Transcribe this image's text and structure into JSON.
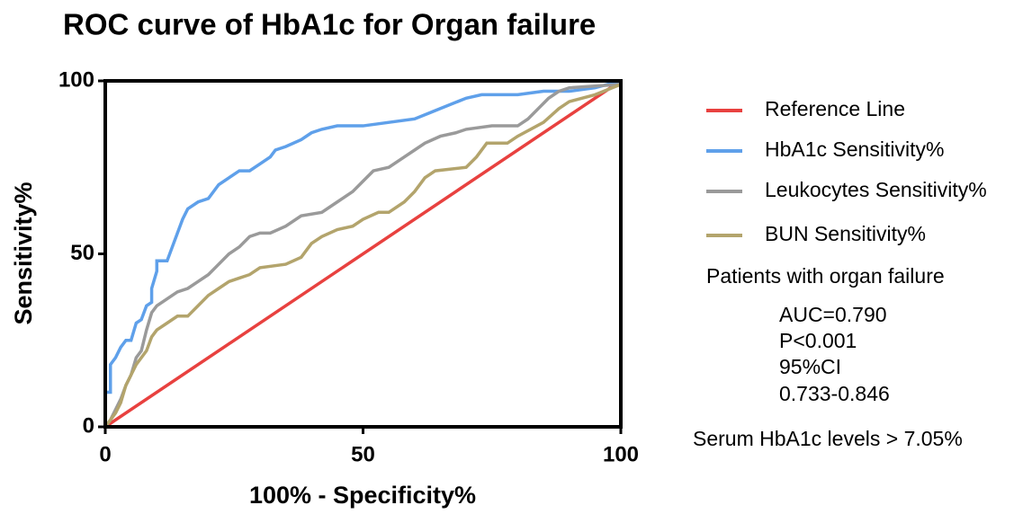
{
  "chart_data": {
    "type": "line",
    "title": "ROC curve of HbA1c for Organ failure",
    "xlabel": "100% - Specificity%",
    "ylabel": "Sensitivity%",
    "xlim": [
      0,
      100
    ],
    "ylim": [
      0,
      100
    ],
    "xticks": [
      0,
      50,
      100
    ],
    "yticks": [
      0,
      50,
      100
    ],
    "legend": "right",
    "series": [
      {
        "name": "Reference Line",
        "color": "#e8413f",
        "x": [
          0,
          100
        ],
        "values": [
          0,
          100
        ]
      },
      {
        "name": "HbA1c Sensitivity%",
        "color": "#5fa0ea",
        "x": [
          0,
          0,
          1,
          1,
          2,
          3,
          4,
          5,
          6,
          7,
          8,
          9,
          9,
          10,
          10,
          12,
          13,
          14,
          15,
          16,
          18,
          20,
          22,
          24,
          26,
          28,
          30,
          32,
          33,
          35,
          38,
          40,
          42,
          45,
          50,
          55,
          60,
          65,
          70,
          73,
          80,
          85,
          90,
          95,
          100
        ],
        "values": [
          0,
          10,
          10,
          18,
          20,
          23,
          25,
          25,
          30,
          31,
          35,
          36,
          40,
          45,
          48,
          48,
          52,
          56,
          60,
          63,
          65,
          66,
          70,
          72,
          74,
          74,
          76,
          78,
          80,
          81,
          83,
          85,
          86,
          87,
          87,
          88,
          89,
          92,
          95,
          96,
          96,
          97,
          97,
          98,
          100
        ]
      },
      {
        "name": "Leukocytes Sensitivity%",
        "color": "#9a9a9a",
        "x": [
          0,
          1,
          2,
          3,
          4,
          5,
          6,
          7,
          8,
          9,
          10,
          12,
          14,
          16,
          18,
          20,
          22,
          24,
          26,
          28,
          30,
          32,
          35,
          38,
          42,
          45,
          48,
          50,
          52,
          55,
          58,
          60,
          62,
          65,
          68,
          70,
          75,
          80,
          82,
          84,
          86,
          88,
          90,
          100
        ],
        "values": [
          0,
          2,
          5,
          8,
          12,
          15,
          20,
          22,
          28,
          33,
          35,
          37,
          39,
          40,
          42,
          44,
          47,
          50,
          52,
          55,
          56,
          56,
          58,
          61,
          62,
          65,
          68,
          71,
          74,
          75,
          78,
          80,
          82,
          84,
          85,
          86,
          87,
          87,
          89,
          92,
          95,
          97,
          98,
          99
        ]
      },
      {
        "name": "BUN Sensitivity%",
        "color": "#b3a46c",
        "x": [
          0,
          1,
          2,
          3,
          4,
          5,
          6,
          8,
          9,
          10,
          12,
          14,
          16,
          18,
          20,
          22,
          24,
          26,
          28,
          30,
          35,
          38,
          40,
          42,
          45,
          48,
          50,
          53,
          55,
          58,
          60,
          62,
          64,
          70,
          72,
          74,
          78,
          80,
          85,
          88,
          90,
          95,
          100
        ],
        "values": [
          0,
          2,
          4,
          7,
          12,
          15,
          18,
          22,
          26,
          28,
          30,
          32,
          32,
          35,
          38,
          40,
          42,
          43,
          44,
          46,
          47,
          49,
          53,
          55,
          57,
          58,
          60,
          62,
          62,
          65,
          68,
          72,
          74,
          75,
          78,
          82,
          82,
          84,
          88,
          92,
          94,
          96,
          99
        ]
      }
    ],
    "annotations": [
      "Patients with organ failure",
      "AUC=0.790",
      "P<0.001",
      "95%CI",
      "0.733-0.846",
      "Serum HbA1c levels > 7.05%"
    ]
  }
}
